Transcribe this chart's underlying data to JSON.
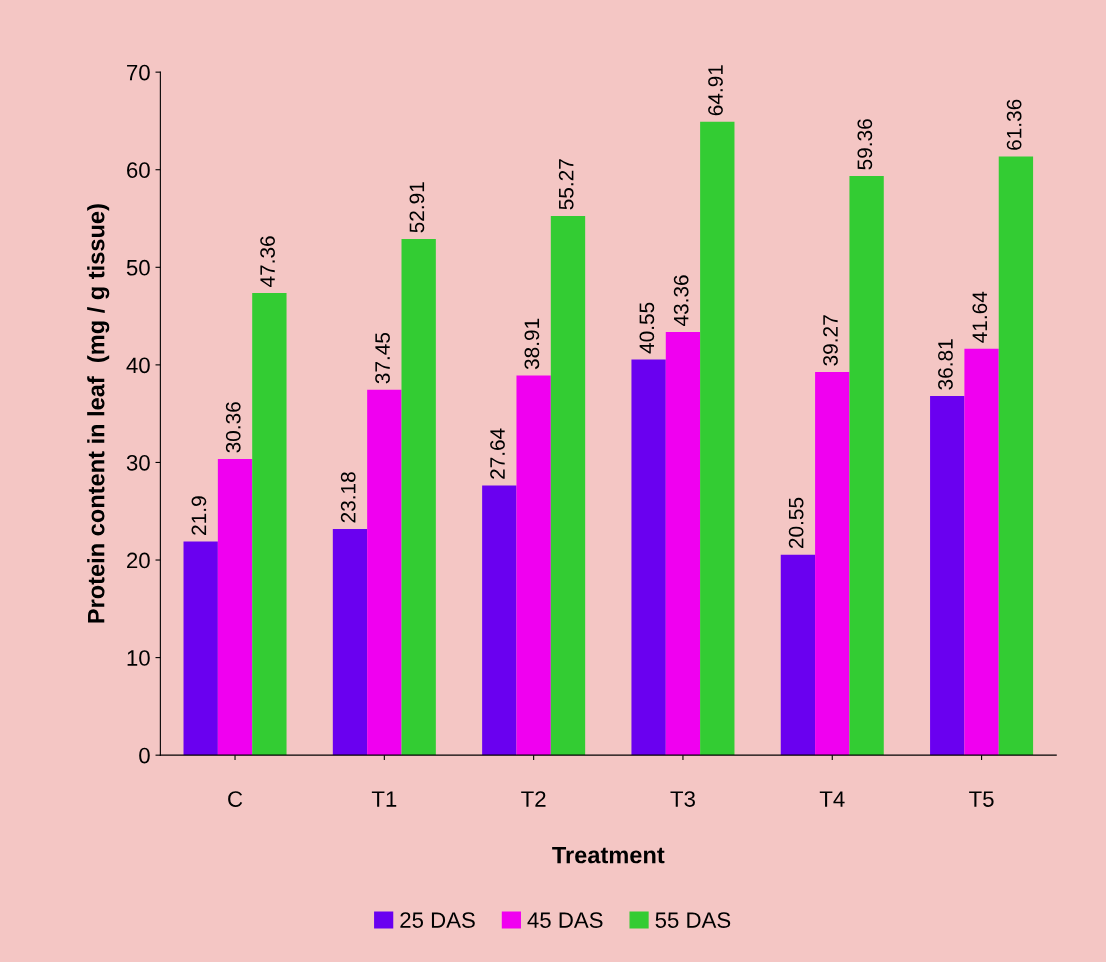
{
  "chart_data": {
    "type": "bar",
    "xlabel": "Treatment",
    "ylabel": "Protein content in leaf  (mg / g tissue)",
    "categories": [
      "C",
      "T1",
      "T2",
      "T3",
      "T4",
      "T5"
    ],
    "series": [
      {
        "name": "25 DAS",
        "color": "#6a00f0",
        "values": [
          21.9,
          23.18,
          27.64,
          40.55,
          20.55,
          36.81
        ]
      },
      {
        "name": "45 DAS",
        "color": "#f000f0",
        "values": [
          30.36,
          37.45,
          38.91,
          43.36,
          39.27,
          41.64
        ]
      },
      {
        "name": "55 DAS",
        "color": "#33cc33",
        "values": [
          47.36,
          52.91,
          55.27,
          64.91,
          59.36,
          61.36
        ]
      }
    ],
    "ylim": [
      0,
      70
    ],
    "yticks": [
      0,
      10,
      20,
      30,
      40,
      50,
      60,
      70
    ],
    "data_labels": true,
    "grid": false,
    "legend": "bottom"
  }
}
